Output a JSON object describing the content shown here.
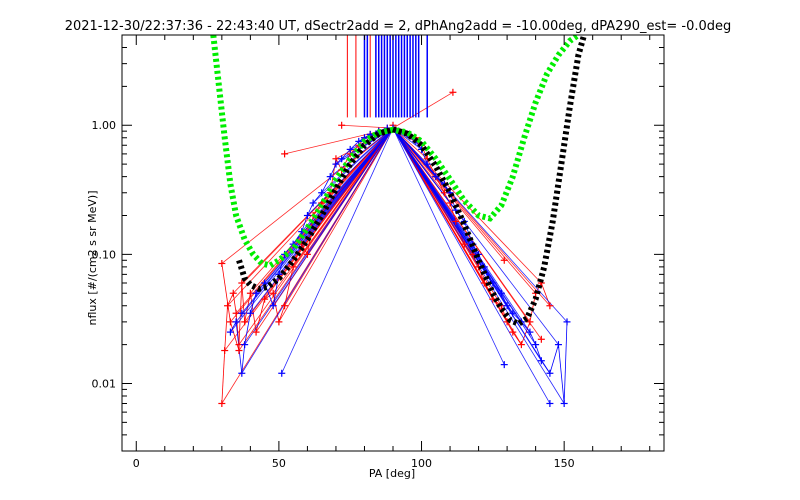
{
  "chart_data": {
    "type": "scatter",
    "title": "2021-12-30/22:37:36 - 22:43:40 UT, dSectr2add = 2, dPhAng2add = -10.00deg, dPA290_est=  -0.0deg",
    "xlabel": "PA [deg]",
    "ylabel": "nflux [#/(cm2 s sr MeV)]",
    "xlim": [
      -5,
      185
    ],
    "ylim": [
      0.003,
      5.0
    ],
    "yscale": "log",
    "grid": false,
    "xticks": [
      0,
      50,
      100,
      150
    ],
    "xtick_labels": [
      "0",
      "50",
      "100",
      "150"
    ],
    "yticks": [
      0.01,
      0.1,
      1.0
    ],
    "ytick_labels": [
      "0.01",
      "0.10",
      "1.00"
    ],
    "colors": {
      "red_series": "#ff0000",
      "blue_series": "#0000ff",
      "green_curve": "#00ee00",
      "black_curve": "#000000",
      "axes": "#000000"
    },
    "series": [
      {
        "color": "red",
        "x": [
          30,
          31,
          32,
          34,
          35,
          36,
          37,
          38,
          40,
          42,
          45,
          48,
          50,
          52,
          55,
          58,
          60,
          62,
          65,
          68,
          70,
          72,
          75,
          78,
          80,
          82,
          85,
          88,
          90,
          92,
          95,
          98,
          100,
          102,
          105,
          108,
          110,
          112,
          115,
          118,
          120,
          122,
          125,
          128,
          130,
          132,
          135,
          138,
          140,
          142,
          145,
          30,
          33,
          36,
          52,
          72,
          90,
          111,
          129,
          142
        ],
        "y": [
          0.007,
          0.018,
          0.04,
          0.05,
          0.035,
          0.02,
          0.06,
          0.03,
          0.05,
          0.025,
          0.045,
          0.05,
          0.03,
          0.04,
          0.08,
          0.12,
          0.1,
          0.2,
          0.25,
          0.3,
          0.55,
          0.45,
          0.6,
          0.7,
          0.8,
          0.85,
          0.9,
          0.95,
          0.95,
          0.9,
          0.85,
          0.8,
          0.7,
          0.55,
          0.4,
          0.3,
          0.25,
          0.18,
          0.12,
          0.1,
          0.08,
          0.06,
          0.045,
          0.04,
          0.03,
          0.025,
          0.02,
          0.03,
          0.05,
          0.06,
          0.04,
          0.085,
          0.03,
          0.018,
          0.6,
          1.0,
          1.0,
          1.8,
          0.09,
          0.022
        ]
      },
      {
        "color": "blue",
        "x": [
          33,
          35,
          37,
          38,
          40,
          42,
          45,
          48,
          50,
          52,
          55,
          58,
          60,
          62,
          65,
          68,
          70,
          72,
          75,
          78,
          80,
          82,
          85,
          88,
          90,
          92,
          95,
          98,
          100,
          102,
          105,
          108,
          110,
          112,
          115,
          118,
          120,
          122,
          125,
          128,
          130,
          132,
          135,
          138,
          140,
          142,
          145,
          148,
          150,
          151,
          37,
          129,
          145,
          51
        ],
        "y": [
          0.025,
          0.03,
          0.012,
          0.02,
          0.035,
          0.05,
          0.06,
          0.04,
          0.07,
          0.1,
          0.12,
          0.15,
          0.2,
          0.25,
          0.3,
          0.4,
          0.5,
          0.55,
          0.65,
          0.75,
          0.8,
          0.85,
          0.9,
          0.95,
          0.95,
          0.9,
          0.85,
          0.75,
          0.65,
          0.5,
          0.4,
          0.35,
          0.3,
          0.22,
          0.18,
          0.12,
          0.1,
          0.08,
          0.06,
          0.05,
          0.04,
          0.035,
          0.03,
          0.025,
          0.02,
          0.015,
          0.012,
          0.02,
          0.007,
          0.03,
          0.035,
          0.014,
          0.007,
          0.012
        ]
      }
    ],
    "red_vertical_marks_x": [
      74,
      77,
      82,
      84,
      86,
      87,
      88,
      89
    ],
    "blue_vertical_marks_x": [
      80,
      81,
      84,
      85,
      86,
      87,
      88,
      89,
      90,
      91,
      92,
      93,
      94,
      95,
      96,
      97,
      98,
      99,
      102
    ],
    "green_fit": {
      "x": [
        27,
        29,
        31,
        33,
        35,
        38,
        41,
        44,
        47,
        50,
        55,
        60,
        65,
        70,
        75,
        80,
        85,
        90,
        95,
        100,
        105,
        110,
        115,
        120,
        124,
        128,
        132,
        136,
        140,
        144,
        148,
        152,
        155
      ],
      "y": [
        5.0,
        2.0,
        0.8,
        0.35,
        0.2,
        0.13,
        0.1,
        0.085,
        0.082,
        0.09,
        0.11,
        0.16,
        0.24,
        0.38,
        0.55,
        0.75,
        0.88,
        0.92,
        0.88,
        0.75,
        0.55,
        0.38,
        0.26,
        0.2,
        0.19,
        0.24,
        0.4,
        0.8,
        1.5,
        2.5,
        3.5,
        4.5,
        5.0
      ]
    },
    "black_fit": {
      "x": [
        36,
        38,
        40,
        43,
        46,
        50,
        55,
        60,
        65,
        70,
        75,
        80,
        85,
        90,
        95,
        100,
        105,
        110,
        115,
        120,
        125,
        128,
        131,
        134,
        137,
        140,
        143,
        146,
        149,
        152,
        155,
        157
      ],
      "y": [
        0.09,
        0.065,
        0.058,
        0.054,
        0.056,
        0.065,
        0.09,
        0.13,
        0.2,
        0.32,
        0.5,
        0.7,
        0.86,
        0.93,
        0.86,
        0.7,
        0.48,
        0.3,
        0.17,
        0.09,
        0.05,
        0.038,
        0.031,
        0.029,
        0.032,
        0.045,
        0.08,
        0.18,
        0.5,
        1.4,
        3.5,
        5.0
      ]
    }
  }
}
